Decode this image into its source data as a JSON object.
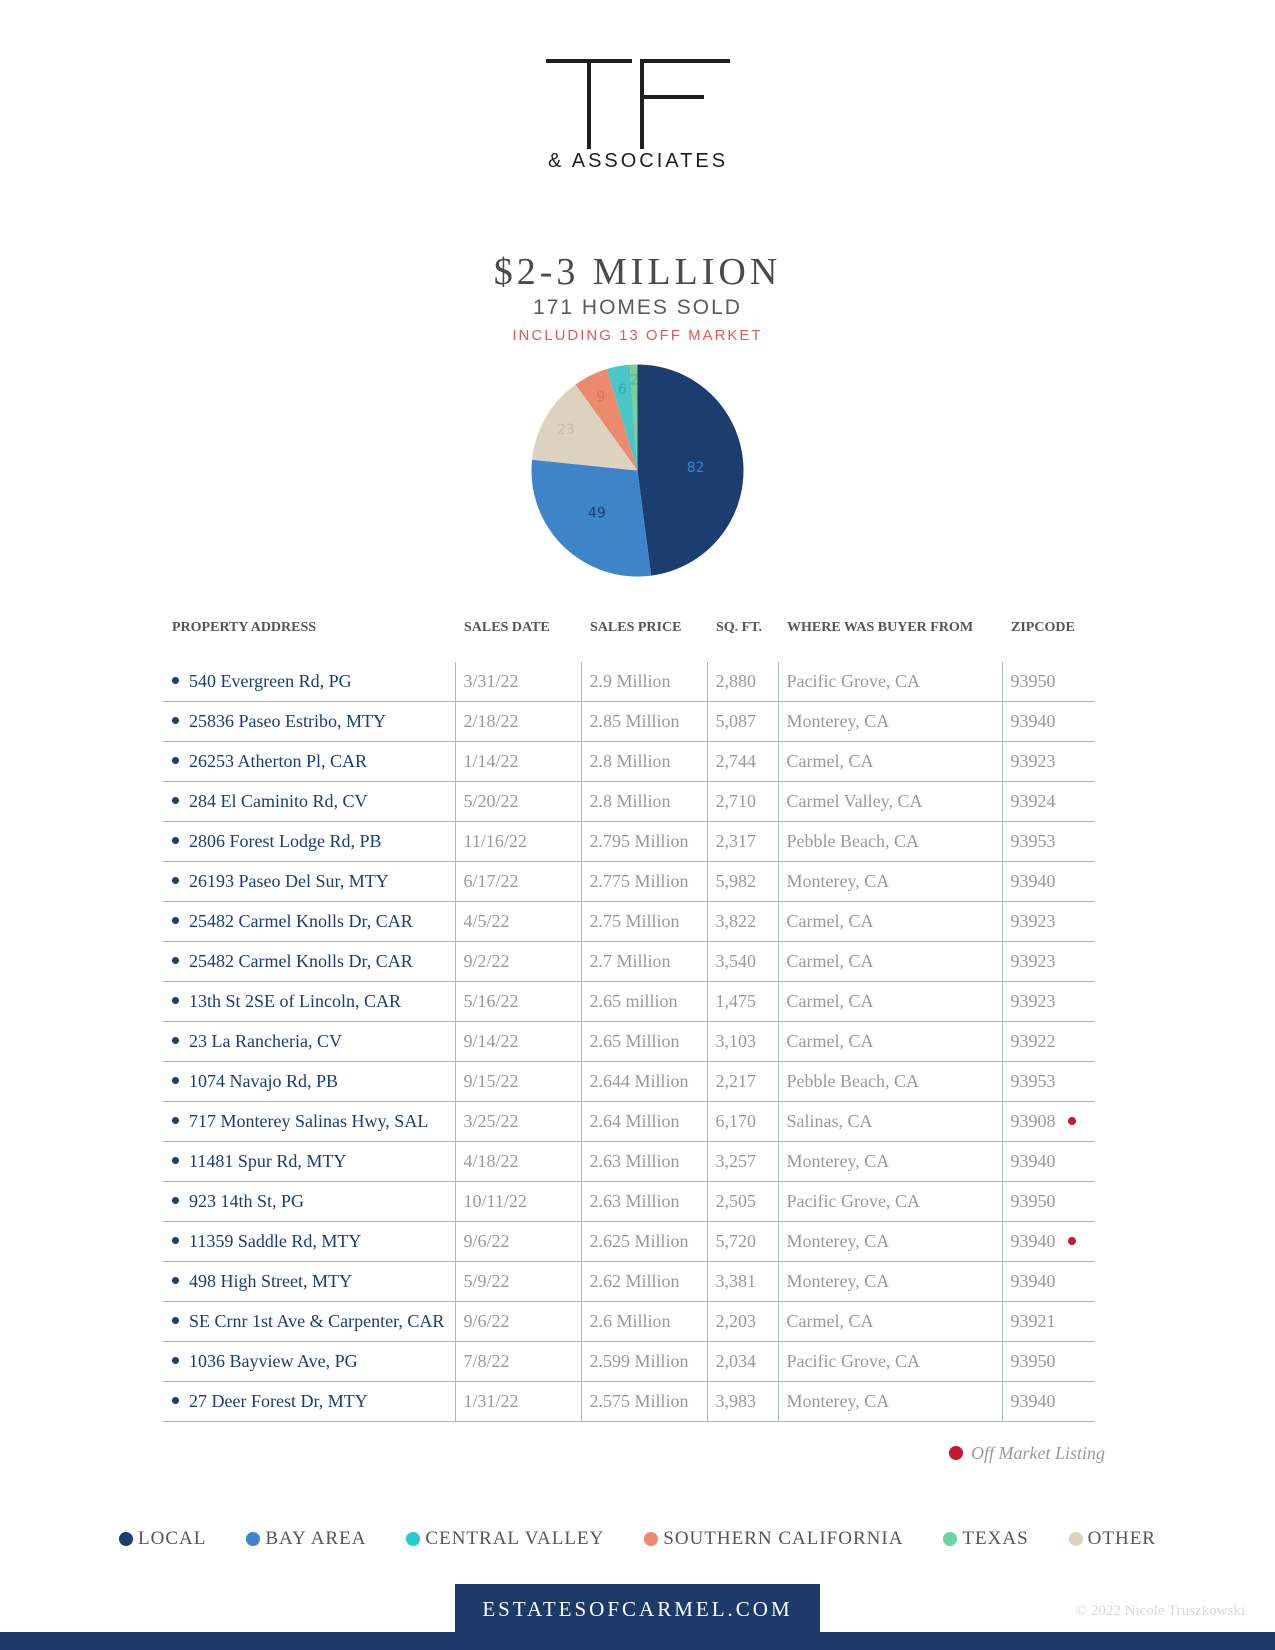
{
  "brand": {
    "logo_letters": "TF",
    "logo_sub": "& ASSOCIATES"
  },
  "header": {
    "title": "$2-3 MILLION",
    "subtitle": "171 HOMES SOLD",
    "note": "INCLUDING 13 OFF MARKET"
  },
  "chart_data": {
    "type": "pie",
    "values": [
      82,
      49,
      23,
      9,
      6,
      2
    ],
    "categories": [
      "LOCAL",
      "BAY AREA",
      "OTHER",
      "SOUTHERN CALIFORNIA",
      "CENTRAL VALLEY",
      "TEXAS"
    ],
    "colors": [
      "#1b3d70",
      "#3e84c8",
      "#ddd2c0",
      "#eb8a6c",
      "#4bc6c8",
      "#7bcf9a"
    ],
    "label_colors": [
      "#3e84c8",
      "#1b3d70",
      "#c8bca8",
      "#d9735a",
      "#2fa9ab",
      "#5cb67f"
    ]
  },
  "table": {
    "headers": [
      "PROPERTY ADDRESS",
      "SALES DATE",
      "SALES PRICE",
      "SQ. FT.",
      "WHERE WAS BUYER FROM",
      "ZIPCODE"
    ],
    "rows": [
      [
        "540 Evergreen Rd, PG",
        "3/31/22",
        "2.9 Million",
        "2,880",
        "Pacific Grove, CA",
        "93950"
      ],
      [
        "25836 Paseo Estribo, MTY",
        "2/18/22",
        "2.85 Million",
        "5,087",
        "Monterey, CA",
        "93940"
      ],
      [
        "26253 Atherton Pl, CAR",
        "1/14/22",
        "2.8 Million",
        "2,744",
        "Carmel, CA",
        "93923"
      ],
      [
        "284 El Caminito Rd, CV",
        "5/20/22",
        "2.8 Million",
        "2,710",
        "Carmel Valley, CA",
        "93924"
      ],
      [
        "2806 Forest Lodge Rd, PB",
        "11/16/22",
        "2.795 Million",
        "2,317",
        "Pebble Beach, CA",
        "93953"
      ],
      [
        "26193 Paseo Del Sur, MTY",
        "6/17/22",
        "2.775 Million",
        "5,982",
        "Monterey, CA",
        "93940"
      ],
      [
        "25482 Carmel Knolls Dr, CAR",
        "4/5/22",
        "2.75 Million",
        "3,822",
        "Carmel, CA",
        "93923"
      ],
      [
        "25482 Carmel Knolls Dr, CAR",
        "9/2/22",
        "2.7 Million",
        "3,540",
        "Carmel, CA",
        "93923"
      ],
      [
        "13th St 2SE of Lincoln, CAR",
        "5/16/22",
        "2.65 million",
        "1,475",
        "Carmel, CA",
        "93923"
      ],
      [
        "23 La Rancheria, CV",
        "9/14/22",
        "2.65 Million",
        "3,103",
        "Carmel, CA",
        "93922"
      ],
      [
        "1074 Navajo Rd, PB",
        "9/15/22",
        "2.644 Million",
        "2,217",
        "Pebble Beach, CA",
        "93953"
      ],
      [
        "717 Monterey Salinas Hwy, SAL",
        "3/25/22",
        "2.64 Million",
        "6,170",
        "Salinas, CA",
        "93908"
      ],
      [
        "11481 Spur Rd, MTY",
        "4/18/22",
        "2.63 Million",
        "3,257",
        "Monterey, CA",
        "93940"
      ],
      [
        "923 14th St, PG",
        "10/11/22",
        "2.63 Million",
        "2,505",
        "Pacific Grove, CA",
        "93950"
      ],
      [
        "11359 Saddle Rd, MTY",
        "9/6/22",
        "2.625 Million",
        "5,720",
        "Monterey, CA",
        "93940"
      ],
      [
        "498 High Street, MTY",
        "5/9/22",
        "2.62 Million",
        "3,381",
        "Monterey, CA",
        "93940"
      ],
      [
        "SE Crnr 1st Ave & Carpenter, CAR",
        "9/6/22",
        "2.6 Million",
        "2,203",
        "Carmel, CA",
        "93921"
      ],
      [
        "1036 Bayview Ave, PG",
        "7/8/22",
        "2.599 Million",
        "2,034",
        "Pacific Grove, CA",
        "93950"
      ],
      [
        "27 Deer Forest Dr, MTY",
        "1/31/22",
        "2.575 Million",
        "3,983",
        "Monterey, CA",
        "93940"
      ]
    ],
    "off_market_rows": [
      11,
      14
    ]
  },
  "off_market_note": "Off Market Listing",
  "legend": [
    {
      "label": "LOCAL",
      "color": "#1b3d70"
    },
    {
      "label": "BAY AREA",
      "color": "#3e84c8"
    },
    {
      "label": "CENTRAL VALLEY",
      "color": "#22c9d6"
    },
    {
      "label": "SOUTHERN CALIFORNIA",
      "color": "#eb8a6c"
    },
    {
      "label": "TEXAS",
      "color": "#6dd3a0"
    },
    {
      "label": "OTHER",
      "color": "#ddd2c0"
    }
  ],
  "footer": {
    "website": "ESTATESOFCARMEL.COM",
    "copyright": "© 2022 Nicole Truszkowski"
  }
}
